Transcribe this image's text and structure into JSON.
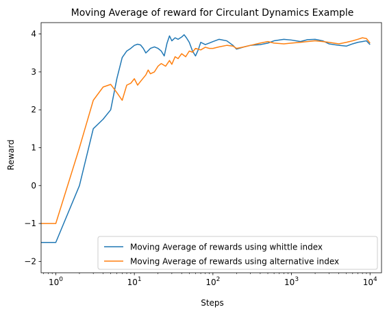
{
  "chart_data": {
    "type": "line",
    "title": "Moving Average of reward for Circulant Dynamics Example",
    "xlabel": "Steps",
    "ylabel": "Reward",
    "xscale": "log",
    "xlim": [
      0.65,
      14000
    ],
    "ylim": [
      -2.3,
      4.3
    ],
    "grid": false,
    "legend_position": "lower-right",
    "x_ticks": [
      {
        "value": 1,
        "base": "10",
        "exp": "0"
      },
      {
        "value": 10,
        "base": "10",
        "exp": "1"
      },
      {
        "value": 100,
        "base": "10",
        "exp": "2"
      },
      {
        "value": 1000,
        "base": "10",
        "exp": "3"
      },
      {
        "value": 10000,
        "base": "10",
        "exp": "4"
      }
    ],
    "y_ticks": [
      {
        "value": -2,
        "label": "−2"
      },
      {
        "value": -1,
        "label": "−1"
      },
      {
        "value": 0,
        "label": "0"
      },
      {
        "value": 1,
        "label": "1"
      },
      {
        "value": 2,
        "label": "2"
      },
      {
        "value": 3,
        "label": "3"
      },
      {
        "value": 4,
        "label": "4"
      }
    ],
    "series": [
      {
        "name": "Moving Average of rewards using whittle index",
        "color": "#1f77b4",
        "points": [
          [
            0.65,
            -1.5
          ],
          [
            1,
            -1.5
          ],
          [
            2,
            0.0
          ],
          [
            3,
            1.5
          ],
          [
            4,
            1.75
          ],
          [
            5,
            2.0
          ],
          [
            6,
            2.83
          ],
          [
            7,
            3.38
          ],
          [
            8,
            3.55
          ],
          [
            9,
            3.62
          ],
          [
            10,
            3.7
          ],
          [
            11,
            3.73
          ],
          [
            12,
            3.71
          ],
          [
            13,
            3.62
          ],
          [
            14,
            3.5
          ],
          [
            15,
            3.56
          ],
          [
            16,
            3.62
          ],
          [
            18,
            3.66
          ],
          [
            20,
            3.62
          ],
          [
            22,
            3.55
          ],
          [
            24,
            3.42
          ],
          [
            26,
            3.75
          ],
          [
            28,
            3.95
          ],
          [
            30,
            3.82
          ],
          [
            33,
            3.9
          ],
          [
            36,
            3.86
          ],
          [
            40,
            3.92
          ],
          [
            43,
            3.98
          ],
          [
            46,
            3.9
          ],
          [
            50,
            3.78
          ],
          [
            55,
            3.55
          ],
          [
            60,
            3.42
          ],
          [
            65,
            3.58
          ],
          [
            70,
            3.78
          ],
          [
            80,
            3.72
          ],
          [
            90,
            3.76
          ],
          [
            100,
            3.8
          ],
          [
            120,
            3.86
          ],
          [
            150,
            3.82
          ],
          [
            180,
            3.7
          ],
          [
            200,
            3.6
          ],
          [
            250,
            3.66
          ],
          [
            300,
            3.7
          ],
          [
            400,
            3.72
          ],
          [
            500,
            3.76
          ],
          [
            600,
            3.82
          ],
          [
            800,
            3.86
          ],
          [
            1000,
            3.84
          ],
          [
            1300,
            3.8
          ],
          [
            1600,
            3.85
          ],
          [
            2000,
            3.86
          ],
          [
            2500,
            3.82
          ],
          [
            3000,
            3.74
          ],
          [
            4000,
            3.7
          ],
          [
            5000,
            3.68
          ],
          [
            6000,
            3.74
          ],
          [
            7000,
            3.78
          ],
          [
            8000,
            3.8
          ],
          [
            9000,
            3.82
          ],
          [
            10000,
            3.72
          ]
        ]
      },
      {
        "name": "Moving Average of rewards using alternative index",
        "color": "#ff7f0e",
        "points": [
          [
            0.65,
            -1.0
          ],
          [
            1,
            -1.0
          ],
          [
            2,
            1.0
          ],
          [
            3,
            2.25
          ],
          [
            4,
            2.6
          ],
          [
            5,
            2.67
          ],
          [
            6,
            2.45
          ],
          [
            7,
            2.25
          ],
          [
            8,
            2.65
          ],
          [
            9,
            2.7
          ],
          [
            10,
            2.82
          ],
          [
            11,
            2.65
          ],
          [
            12,
            2.75
          ],
          [
            14,
            2.92
          ],
          [
            15,
            3.05
          ],
          [
            16,
            2.95
          ],
          [
            18,
            3.0
          ],
          [
            20,
            3.15
          ],
          [
            22,
            3.22
          ],
          [
            25,
            3.15
          ],
          [
            28,
            3.3
          ],
          [
            30,
            3.2
          ],
          [
            33,
            3.4
          ],
          [
            36,
            3.35
          ],
          [
            40,
            3.48
          ],
          [
            45,
            3.4
          ],
          [
            50,
            3.55
          ],
          [
            55,
            3.52
          ],
          [
            60,
            3.62
          ],
          [
            70,
            3.58
          ],
          [
            80,
            3.65
          ],
          [
            90,
            3.62
          ],
          [
            100,
            3.62
          ],
          [
            120,
            3.66
          ],
          [
            150,
            3.7
          ],
          [
            180,
            3.68
          ],
          [
            200,
            3.62
          ],
          [
            250,
            3.66
          ],
          [
            300,
            3.7
          ],
          [
            400,
            3.76
          ],
          [
            500,
            3.8
          ],
          [
            600,
            3.76
          ],
          [
            800,
            3.74
          ],
          [
            1000,
            3.76
          ],
          [
            1300,
            3.78
          ],
          [
            1600,
            3.8
          ],
          [
            2000,
            3.82
          ],
          [
            2500,
            3.8
          ],
          [
            3000,
            3.78
          ],
          [
            4000,
            3.74
          ],
          [
            5000,
            3.78
          ],
          [
            6000,
            3.82
          ],
          [
            7000,
            3.86
          ],
          [
            8000,
            3.9
          ],
          [
            9000,
            3.88
          ],
          [
            10000,
            3.76
          ]
        ]
      }
    ]
  }
}
